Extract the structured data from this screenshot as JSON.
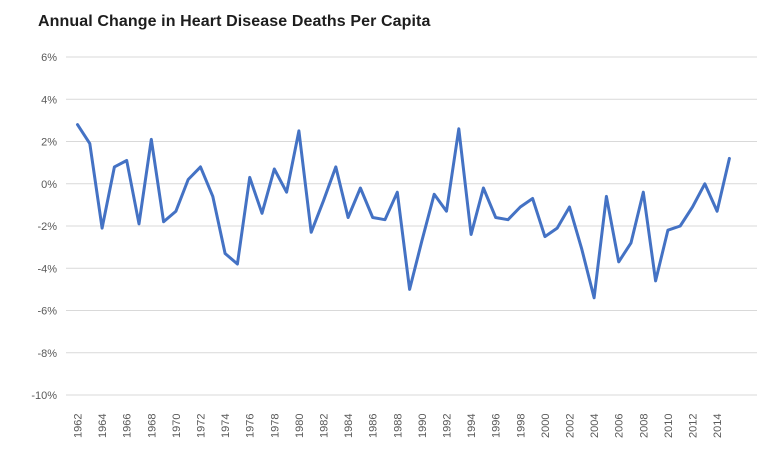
{
  "chart": {
    "title": "Annual Change in Heart Disease Deaths Per Capita",
    "colors": {
      "line": "#4472C4",
      "gridline": "#D9D9D9",
      "tick_label": "#595959",
      "title_text": "#1D1D1D",
      "background": "#FFFFFF"
    }
  },
  "chart_data": {
    "type": "line",
    "title": "Annual Change in Heart Disease Deaths Per Capita",
    "xlabel": "",
    "ylabel": "",
    "unit": "percent",
    "ylim": [
      -10,
      6
    ],
    "y_tick_step": 2,
    "grid": "horizontal",
    "legend": "none",
    "line_color": "#4472C4",
    "x": [
      1962,
      1963,
      1964,
      1965,
      1966,
      1967,
      1968,
      1969,
      1970,
      1971,
      1972,
      1973,
      1974,
      1975,
      1976,
      1977,
      1978,
      1979,
      1980,
      1981,
      1982,
      1983,
      1984,
      1985,
      1986,
      1987,
      1988,
      1989,
      1990,
      1991,
      1992,
      1993,
      1994,
      1995,
      1996,
      1997,
      1998,
      1999,
      2000,
      2001,
      2002,
      2003,
      2004,
      2005,
      2006,
      2007,
      2008,
      2009,
      2010,
      2011,
      2012,
      2013,
      2014,
      2015
    ],
    "values": [
      2.8,
      1.9,
      -2.1,
      0.8,
      1.1,
      -1.9,
      2.1,
      -1.8,
      -1.3,
      0.2,
      0.8,
      -0.6,
      -3.3,
      -3.8,
      0.3,
      -1.4,
      0.7,
      -0.4,
      2.5,
      -2.3,
      -0.8,
      0.8,
      -1.6,
      -0.2,
      -1.6,
      -1.7,
      -0.4,
      -5.0,
      -2.7,
      -0.5,
      -1.3,
      2.6,
      -2.4,
      -0.2,
      -1.6,
      -1.7,
      -1.1,
      -0.7,
      -2.5,
      -2.1,
      -1.1,
      -3.1,
      -5.4,
      -0.6,
      -3.7,
      -2.8,
      -0.4,
      -4.6,
      -2.2,
      -2.0,
      -1.1,
      0.0,
      -1.3,
      1.2
    ],
    "x_tick_labels": [
      "1962",
      "1964",
      "1966",
      "1968",
      "1970",
      "1972",
      "1974",
      "1976",
      "1978",
      "1980",
      "1982",
      "1984",
      "1986",
      "1988",
      "1990",
      "1992",
      "1994",
      "1996",
      "1998",
      "2000",
      "2002",
      "2004",
      "2006",
      "2008",
      "2010",
      "2012",
      "2014"
    ],
    "y_tick_labels": [
      "6%",
      "4%",
      "2%",
      "0%",
      "-2%",
      "-4%",
      "-6%",
      "-8%",
      "-10%"
    ]
  }
}
